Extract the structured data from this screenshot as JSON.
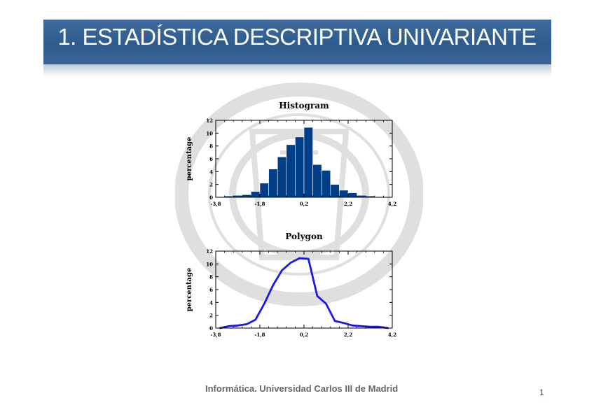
{
  "slide": {
    "title": "1. ESTADÍSTICA DESCRIPTIVA UNIVARIANTE",
    "footer": "Informática. Universidad Carlos III de Madrid",
    "page_number": "1",
    "colors": {
      "header": "#2e5b8d",
      "histogram_bars": "#003f87",
      "polygon_line": "#1a1ae6"
    }
  },
  "chart_data": [
    {
      "type": "bar",
      "title": "Histogram",
      "ylabel": "percentage",
      "xlabel": "",
      "xlim": [
        -3.8,
        4.2
      ],
      "ylim": [
        0,
        12
      ],
      "xticks": [
        -3.8,
        -1.8,
        0.2,
        2.2,
        4.2
      ],
      "xtick_labels": [
        "-3,8",
        "-1,8",
        "0,2",
        "2,2",
        "4,2"
      ],
      "yticks": [
        0,
        2,
        4,
        6,
        8,
        10,
        12
      ],
      "bin_width": 0.4,
      "bin_starts": [
        -3.4,
        -3.0,
        -2.6,
        -2.2,
        -1.8,
        -1.4,
        -1.0,
        -0.6,
        -0.2,
        0.2,
        0.6,
        1.0,
        1.4,
        1.8,
        2.2,
        2.6,
        3.0
      ],
      "values": [
        0.2,
        0.3,
        0.4,
        0.9,
        2.2,
        4.4,
        6.3,
        8.2,
        9.4,
        10.9,
        5.1,
        4.2,
        2.0,
        1.1,
        0.7,
        0.3,
        0.2
      ]
    },
    {
      "type": "line",
      "title": "Polygon",
      "ylabel": "percentage",
      "xlabel": "",
      "xlim": [
        -3.8,
        4.2
      ],
      "ylim": [
        0,
        12
      ],
      "xticks": [
        -3.8,
        -1.8,
        0.2,
        2.2,
        4.2
      ],
      "xtick_labels": [
        "-3,8",
        "-1,8",
        "0,2",
        "2,2",
        "4,2"
      ],
      "yticks": [
        0,
        2,
        4,
        6,
        8,
        10,
        12
      ],
      "x": [
        -3.6,
        -3.2,
        -2.8,
        -2.4,
        -2.0,
        -1.6,
        -1.2,
        -0.8,
        -0.4,
        0.0,
        0.4,
        0.8,
        1.2,
        1.6,
        2.0,
        2.4,
        2.8,
        3.2,
        3.6,
        4.0
      ],
      "y": [
        0.0,
        0.3,
        0.4,
        0.6,
        1.3,
        3.8,
        6.7,
        9.0,
        10.2,
        10.9,
        10.8,
        5.0,
        3.8,
        1.1,
        0.8,
        0.4,
        0.3,
        0.2,
        0.2,
        0.0
      ]
    }
  ]
}
